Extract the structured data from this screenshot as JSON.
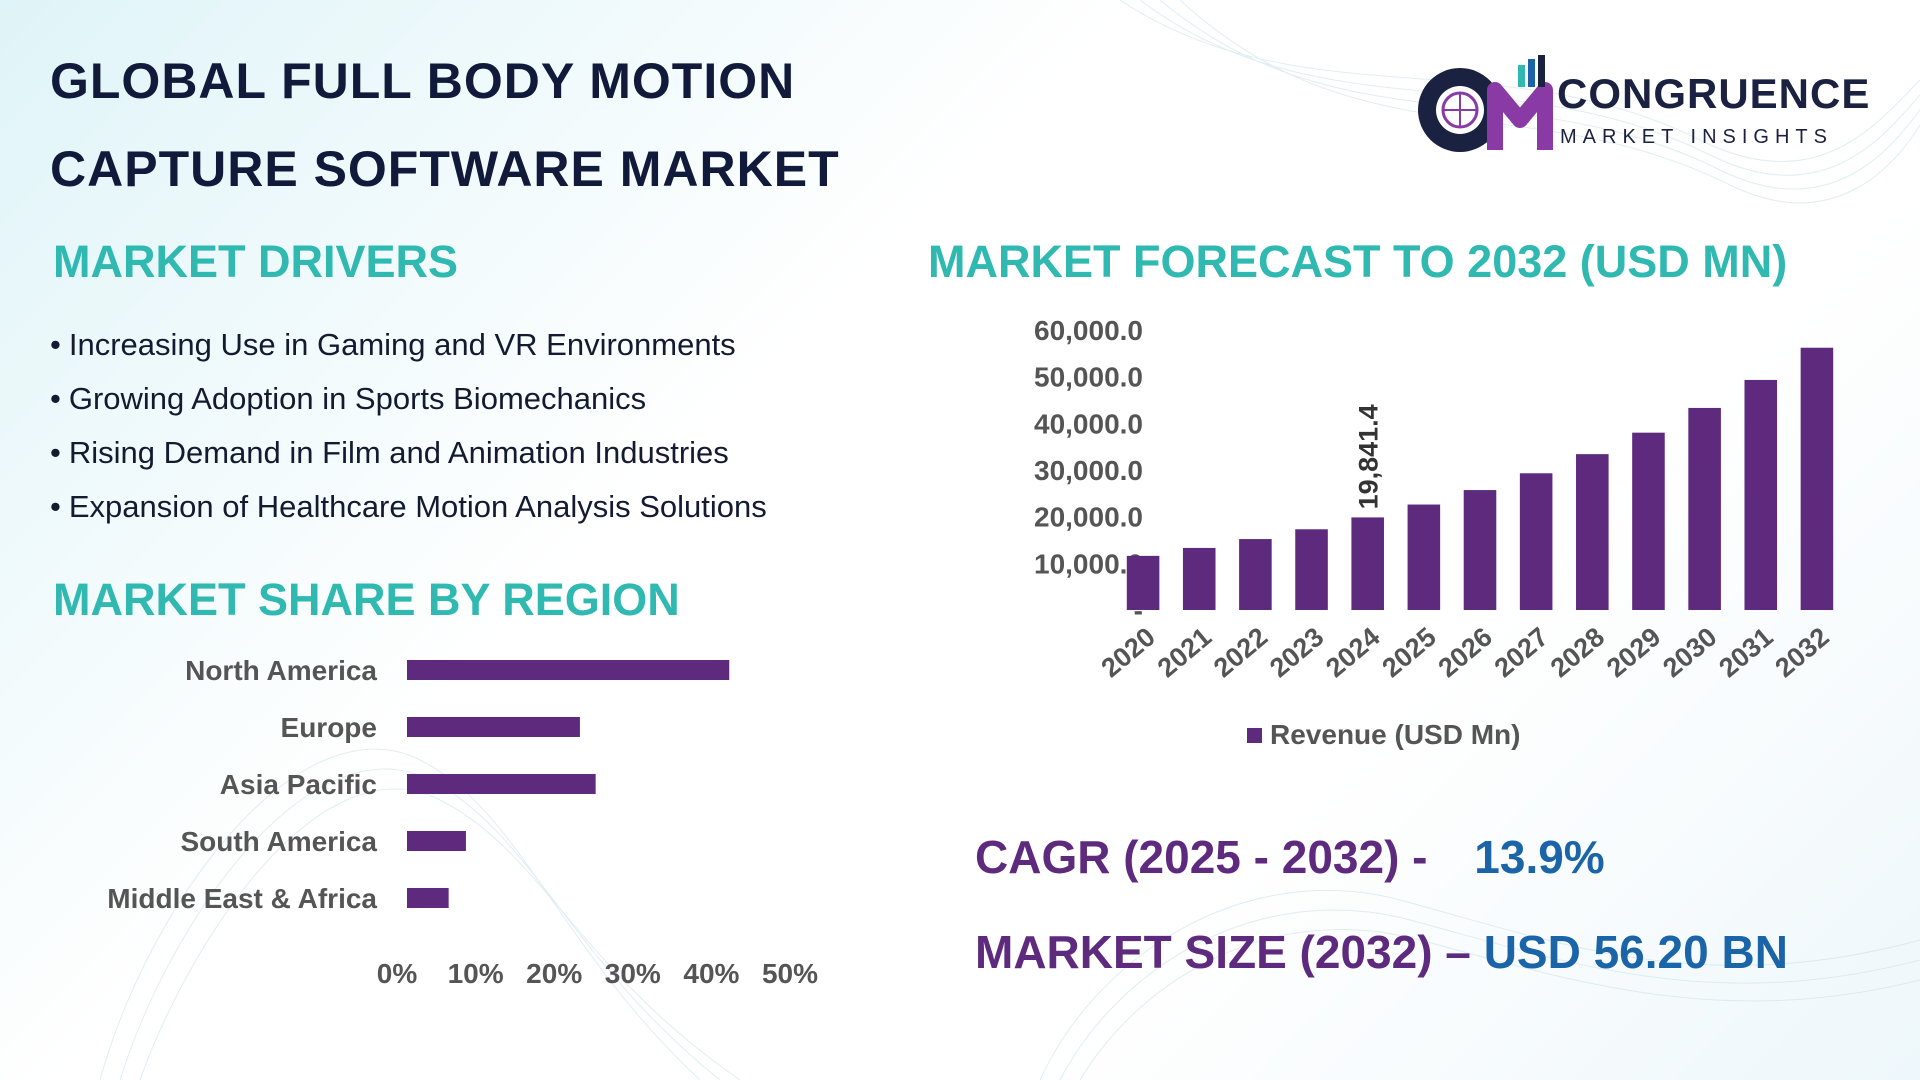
{
  "header": {
    "title_line1": "GLOBAL FULL BODY MOTION",
    "title_line2": "CAPTURE SOFTWARE MARKET"
  },
  "logo": {
    "icon_letters": "CM",
    "name": "CONGRUENCE",
    "tagline": "MARKET INSIGHTS"
  },
  "sections": {
    "drivers_title": "MARKET DRIVERS",
    "forecast_title": "MARKET FORECAST TO 2032 (USD MN)",
    "region_title": "MARKET SHARE BY REGION"
  },
  "drivers": [
    "Increasing Use in Gaming and VR Environments",
    "Growing Adoption in Sports Biomechanics",
    "Rising Demand in Film and Animation Industries",
    "Expansion of Healthcare Motion Analysis Solutions"
  ],
  "stats": {
    "cagr_label": "CAGR (2025 - 2032) -",
    "cagr_value": "13.9%",
    "size_label": "MARKET SIZE (2032) –",
    "size_value": "USD 56.20 BN"
  },
  "colors": {
    "bar": "#5e2a7e",
    "section": "#2fb9b0",
    "title": "#111a3a",
    "value_blue": "#1a64a7"
  },
  "chart_data": [
    {
      "type": "bar",
      "categories": [
        "2020",
        "2021",
        "2022",
        "2023",
        "2024",
        "2025",
        "2026",
        "2027",
        "2028",
        "2029",
        "2030",
        "2031",
        "2032"
      ],
      "series": [
        {
          "name": "Revenue (USD Mn)",
          "values": [
            11600,
            13300,
            15200,
            17300,
            19841.4,
            22600,
            25700,
            29300,
            33400,
            38000,
            43300,
            49300,
            56200
          ]
        }
      ],
      "data_labels": [
        {
          "category": "2024",
          "text": "19,841.4"
        }
      ],
      "ylim": [
        0,
        60000
      ],
      "yticks": [
        0,
        10000,
        20000,
        30000,
        40000,
        50000,
        60000
      ],
      "ytick_labels": [
        "-",
        "10,000.0",
        "20,000.0",
        "30,000.0",
        "40,000.0",
        "50,000.0",
        "60,000.0"
      ],
      "legend": "bottom",
      "grid": false
    },
    {
      "type": "bar",
      "orientation": "horizontal",
      "categories": [
        "North America",
        "Europe",
        "Asia Pacific",
        "South America",
        "Middle East & Africa"
      ],
      "values": [
        41,
        22,
        24,
        7.5,
        5.3
      ],
      "xlim": [
        0,
        50
      ],
      "xticks": [
        0,
        10,
        20,
        30,
        40,
        50
      ],
      "xtick_labels": [
        "0%",
        "10%",
        "20%",
        "30%",
        "40%",
        "50%"
      ],
      "grid": false
    }
  ]
}
